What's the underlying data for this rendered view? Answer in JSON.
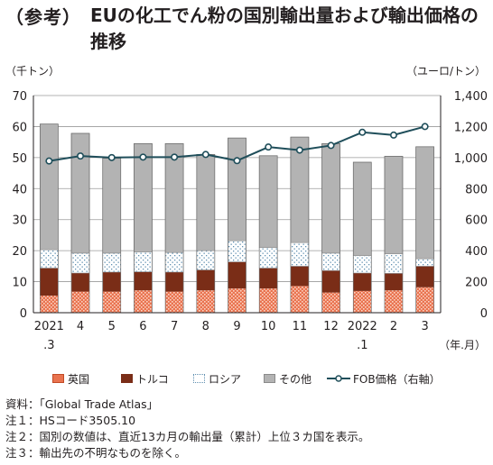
{
  "title": {
    "tag": "（参考）",
    "text": "EUの化工でん粉の国別輸出量および輸出価格の推移"
  },
  "units": {
    "left": "（千トン）",
    "right": "（ユーロ/トン）",
    "x": "（年.月）"
  },
  "colors": {
    "uk": "#e9734f",
    "turkey": "#7a2d17",
    "russia": "#ffffff",
    "other": "#b3b3b3",
    "fob": "#1f4e5a"
  },
  "chart_data": {
    "type": "bar",
    "stacked": true,
    "categories": [
      "2021\n.3",
      "4",
      "5",
      "6",
      "7",
      "8",
      "9",
      "10",
      "11",
      "12",
      "2022\n.1",
      "2",
      "3"
    ],
    "series": [
      {
        "name": "英国",
        "values": [
          5.5,
          6.8,
          6.8,
          7.2,
          6.8,
          7.2,
          7.8,
          7.8,
          8.6,
          6.5,
          7.0,
          7.2,
          8.2
        ]
      },
      {
        "name": "トルコ",
        "values": [
          8.9,
          6.0,
          6.3,
          6.0,
          6.3,
          6.6,
          8.6,
          6.6,
          6.4,
          7.1,
          5.8,
          5.5,
          6.8
        ]
      },
      {
        "name": "ロシア",
        "values": [
          5.9,
          6.4,
          6.1,
          6.4,
          6.3,
          6.2,
          6.8,
          6.6,
          7.6,
          5.6,
          5.6,
          6.3,
          2.4
        ]
      },
      {
        "name": "その他",
        "values": [
          40.5,
          38.6,
          30.6,
          34.9,
          35.1,
          31.0,
          33.1,
          29.6,
          34.0,
          35.3,
          30.1,
          31.4,
          36.1
        ]
      }
    ],
    "line": {
      "name": "FOB価格（右軸）",
      "axis": "right",
      "values": [
        978,
        1010,
        1000,
        1003,
        1003,
        1020,
        980,
        1068,
        1048,
        1078,
        1163,
        1145,
        1200
      ]
    },
    "ylim": [
      0,
      70
    ],
    "yticks": [
      "0",
      "10",
      "20",
      "30",
      "40",
      "50",
      "60",
      "70"
    ],
    "y2lim": [
      0,
      1400
    ],
    "y2ticks": [
      "0",
      "200",
      "400",
      "600",
      "800",
      "1,000",
      "1,200",
      "1,400"
    ],
    "grid": true,
    "legend_position": "bottom"
  },
  "notes": [
    "資料：「Global Trade Atlas」",
    "注１：HSコード3505.10",
    "注２：国別の数値は、直近13カ月の輸出量（累計）上位３カ国を表示。",
    "注３：輸出先の不明なものを除く。"
  ]
}
